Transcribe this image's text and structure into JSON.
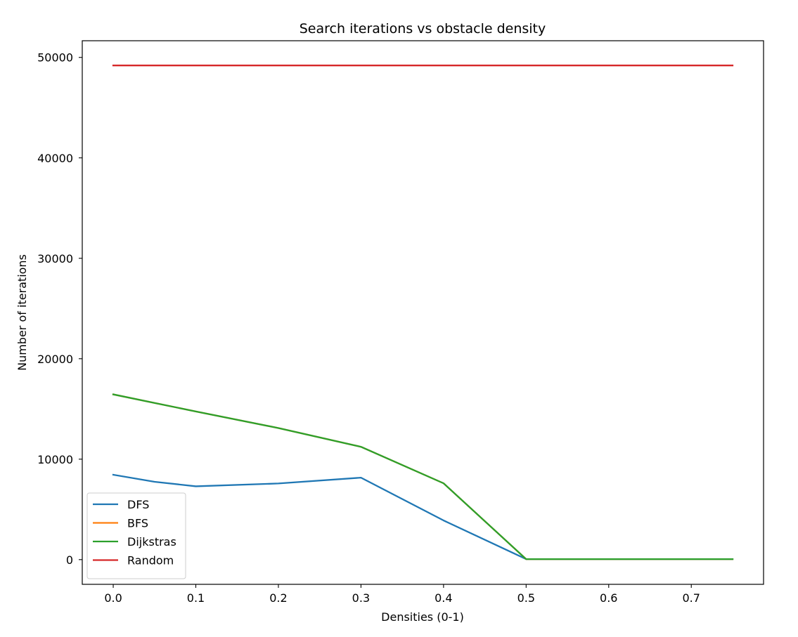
{
  "chart_data": {
    "type": "line",
    "title": "Search iterations vs obstacle density",
    "xlabel": "Densities (0-1)",
    "ylabel": "Number of iterations",
    "xlim": [
      -0.0375,
      0.7875
    ],
    "ylim": [
      -2460,
      51660
    ],
    "x_ticks": [
      0.0,
      0.1,
      0.2,
      0.3,
      0.4,
      0.5,
      0.6,
      0.7
    ],
    "x_tick_labels": [
      "0.0",
      "0.1",
      "0.2",
      "0.3",
      "0.4",
      "0.5",
      "0.6",
      "0.7"
    ],
    "y_ticks": [
      0,
      10000,
      20000,
      30000,
      40000,
      50000
    ],
    "y_tick_labels": [
      "0",
      "10000",
      "20000",
      "30000",
      "40000",
      "50000"
    ],
    "grid": false,
    "legend": {
      "position": "lower-left",
      "entries": [
        "DFS",
        "BFS",
        "Dijkstras",
        "Random"
      ]
    },
    "x": [
      0.0,
      0.05,
      0.1,
      0.2,
      0.3,
      0.4,
      0.5,
      0.6,
      0.7,
      0.75
    ],
    "series": [
      {
        "name": "DFS",
        "color": "#1f77b4",
        "values": [
          8450,
          7750,
          7300,
          7580,
          8160,
          3900,
          50,
          50,
          50,
          50
        ]
      },
      {
        "name": "BFS",
        "color": "#ff7f0e",
        "values": [
          16450,
          15600,
          14750,
          13100,
          11230,
          7600,
          50,
          50,
          50,
          50
        ]
      },
      {
        "name": "Dijkstras",
        "color": "#2ca02c",
        "values": [
          16450,
          15600,
          14750,
          13100,
          11230,
          7600,
          50,
          50,
          50,
          50
        ]
      },
      {
        "name": "Random",
        "color": "#d62728",
        "values": [
          49200,
          49200,
          49200,
          49200,
          49200,
          49200,
          49200,
          49200,
          49200,
          49200
        ]
      }
    ]
  }
}
